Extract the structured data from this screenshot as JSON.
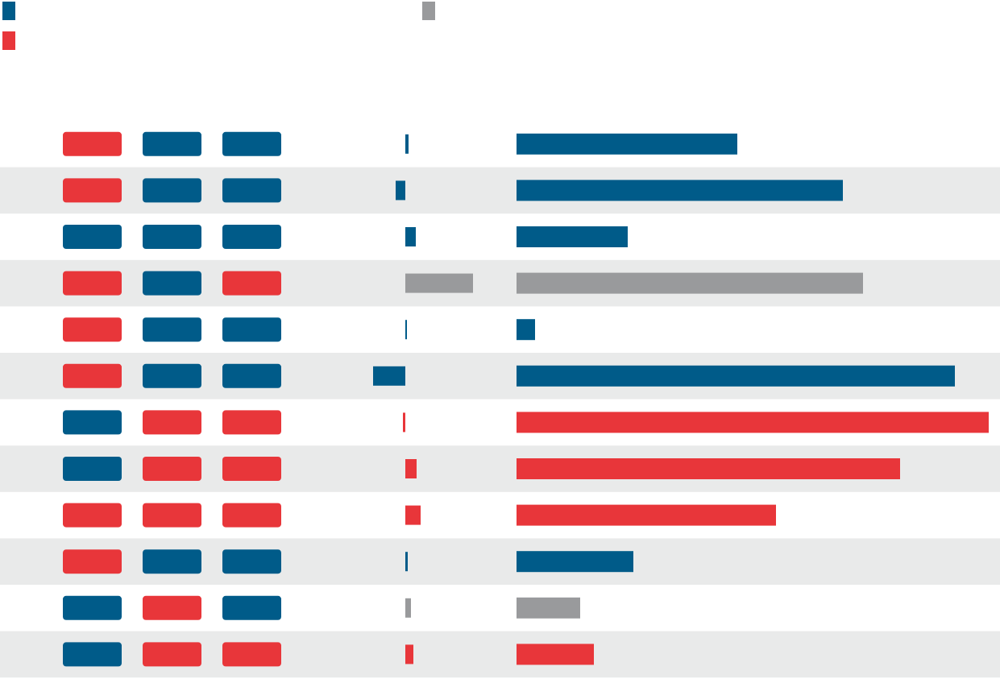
{
  "legend": [
    {
      "color": "#005b89"
    },
    {
      "color": "#999a9c"
    },
    {
      "color": "#e8363a"
    }
  ],
  "rows": [
    {
      "pills": [
        "#e8363a",
        "#005b89",
        "#005b89"
      ],
      "change": 4,
      "change_color": "#005b89",
      "value": 274,
      "color": "#005b89"
    },
    {
      "pills": [
        "#e8363a",
        "#005b89",
        "#005b89"
      ],
      "change": -12,
      "change_color": "#005b89",
      "value": 405,
      "color": "#005b89"
    },
    {
      "pills": [
        "#005b89",
        "#005b89",
        "#005b89"
      ],
      "change": 13,
      "change_color": "#005b89",
      "value": 138,
      "color": "#005b89"
    },
    {
      "pills": [
        "#e8363a",
        "#005b89",
        "#e8363a"
      ],
      "change": 84,
      "change_color": "#999a9c",
      "value": 430,
      "color": "#999a9c"
    },
    {
      "pills": [
        "#e8363a",
        "#005b89",
        "#005b89"
      ],
      "change": 2,
      "change_color": "#005b89",
      "value": 23,
      "color": "#005b89"
    },
    {
      "pills": [
        "#e8363a",
        "#005b89",
        "#005b89"
      ],
      "change": -40,
      "change_color": "#005b89",
      "value": 544,
      "color": "#005b89"
    },
    {
      "pills": [
        "#005b89",
        "#e8363a",
        "#e8363a"
      ],
      "change": -3,
      "change_color": "#e8363a",
      "value": 586,
      "color": "#e8363a"
    },
    {
      "pills": [
        "#005b89",
        "#e8363a",
        "#e8363a"
      ],
      "change": 14,
      "change_color": "#e8363a",
      "value": 476,
      "color": "#e8363a"
    },
    {
      "pills": [
        "#e8363a",
        "#e8363a",
        "#e8363a"
      ],
      "change": 19,
      "change_color": "#e8363a",
      "value": 322,
      "color": "#e8363a"
    },
    {
      "pills": [
        "#e8363a",
        "#005b89",
        "#005b89"
      ],
      "change": 3,
      "change_color": "#005b89",
      "value": 145,
      "color": "#005b89"
    },
    {
      "pills": [
        "#005b89",
        "#e8363a",
        "#005b89"
      ],
      "change": 7,
      "change_color": "#999a9c",
      "value": 79,
      "color": "#999a9c"
    },
    {
      "pills": [
        "#005b89",
        "#e8363a",
        "#e8363a"
      ],
      "change": 10,
      "change_color": "#e8363a",
      "value": 96,
      "color": "#e8363a"
    }
  ]
}
